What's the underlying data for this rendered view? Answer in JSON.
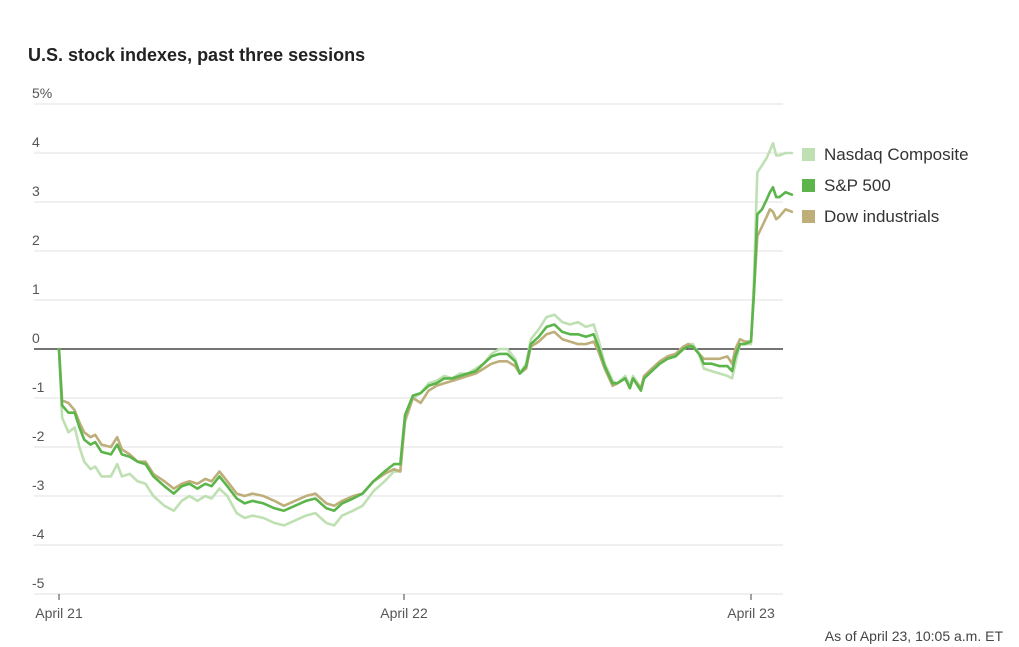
{
  "chart_data": {
    "type": "line",
    "title": "U.S. stock indexes, past three sessions",
    "xlabel": "",
    "ylabel": "",
    "x_tick_labels": [
      "April 21",
      "April 22",
      "April 23"
    ],
    "y_tick_labels": [
      "5%",
      "4",
      "3",
      "2",
      "1",
      "0",
      "-1",
      "-2",
      "-3",
      "-4",
      "-5"
    ],
    "ylim": [
      -5,
      5
    ],
    "grid": true,
    "legend_position": "right",
    "series": [
      {
        "name": "Nasdaq Composite",
        "color": "#bfe0b3",
        "values": [
          [
            0,
            0
          ],
          [
            0.02,
            -1.4
          ],
          [
            0.06,
            -1.7
          ],
          [
            0.1,
            -1.6
          ],
          [
            0.13,
            -2.0
          ],
          [
            0.16,
            -2.3
          ],
          [
            0.2,
            -2.45
          ],
          [
            0.23,
            -2.4
          ],
          [
            0.27,
            -2.6
          ],
          [
            0.33,
            -2.6
          ],
          [
            0.37,
            -2.35
          ],
          [
            0.4,
            -2.6
          ],
          [
            0.45,
            -2.55
          ],
          [
            0.5,
            -2.7
          ],
          [
            0.55,
            -2.75
          ],
          [
            0.6,
            -3.0
          ],
          [
            0.67,
            -3.2
          ],
          [
            0.73,
            -3.3
          ],
          [
            0.78,
            -3.1
          ],
          [
            0.83,
            -3.0
          ],
          [
            0.88,
            -3.1
          ],
          [
            0.93,
            -3.0
          ],
          [
            0.97,
            -3.05
          ],
          [
            1.02,
            -2.85
          ],
          [
            1.07,
            -3.0
          ],
          [
            1.13,
            -3.35
          ],
          [
            1.18,
            -3.45
          ],
          [
            1.23,
            -3.4
          ],
          [
            1.3,
            -3.45
          ],
          [
            1.37,
            -3.55
          ],
          [
            1.43,
            -3.6
          ],
          [
            1.5,
            -3.5
          ],
          [
            1.57,
            -3.4
          ],
          [
            1.63,
            -3.35
          ],
          [
            1.7,
            -3.55
          ],
          [
            1.75,
            -3.6
          ],
          [
            1.8,
            -3.4
          ],
          [
            1.87,
            -3.3
          ],
          [
            1.93,
            -3.2
          ],
          [
            2.0,
            -2.9
          ],
          [
            2.07,
            -2.7
          ],
          [
            2.13,
            -2.5
          ],
          [
            2.17,
            -2.5
          ],
          [
            2.2,
            -1.5
          ],
          [
            2.25,
            -1.0
          ],
          [
            2.3,
            -0.9
          ],
          [
            2.35,
            -0.7
          ],
          [
            2.4,
            -0.65
          ],
          [
            2.45,
            -0.55
          ],
          [
            2.5,
            -0.6
          ],
          [
            2.55,
            -0.5
          ],
          [
            2.6,
            -0.5
          ],
          [
            2.65,
            -0.4
          ],
          [
            2.7,
            -0.3
          ],
          [
            2.75,
            -0.1
          ],
          [
            2.8,
            0.0
          ],
          [
            2.85,
            0.0
          ],
          [
            2.9,
            -0.2
          ],
          [
            2.93,
            -0.5
          ],
          [
            2.97,
            -0.3
          ],
          [
            3.0,
            0.2
          ],
          [
            3.05,
            0.4
          ],
          [
            3.1,
            0.65
          ],
          [
            3.15,
            0.7
          ],
          [
            3.2,
            0.55
          ],
          [
            3.25,
            0.5
          ],
          [
            3.3,
            0.55
          ],
          [
            3.35,
            0.45
          ],
          [
            3.4,
            0.5
          ],
          [
            3.43,
            0.2
          ],
          [
            3.47,
            -0.3
          ],
          [
            3.52,
            -0.65
          ],
          [
            3.55,
            -0.7
          ],
          [
            3.6,
            -0.55
          ],
          [
            3.63,
            -0.75
          ],
          [
            3.65,
            -0.55
          ],
          [
            3.7,
            -0.8
          ],
          [
            3.72,
            -0.6
          ],
          [
            3.77,
            -0.4
          ],
          [
            3.82,
            -0.3
          ],
          [
            3.87,
            -0.15
          ],
          [
            3.92,
            -0.1
          ],
          [
            3.97,
            0.05
          ],
          [
            4.0,
            0.1
          ],
          [
            4.03,
            0.1
          ],
          [
            4.07,
            -0.1
          ],
          [
            4.1,
            -0.4
          ],
          [
            4.15,
            -0.45
          ],
          [
            4.2,
            -0.5
          ],
          [
            4.25,
            -0.55
          ],
          [
            4.28,
            -0.6
          ],
          [
            4.3,
            -0.3
          ],
          [
            4.33,
            0.1
          ],
          [
            4.36,
            0.1
          ],
          [
            4.4,
            0.1
          ],
          [
            4.42,
            1.5
          ],
          [
            4.44,
            3.6
          ],
          [
            4.47,
            3.75
          ],
          [
            4.5,
            3.9
          ],
          [
            4.52,
            4.05
          ],
          [
            4.54,
            4.2
          ],
          [
            4.56,
            3.95
          ],
          [
            4.58,
            3.95
          ],
          [
            4.62,
            4.0
          ],
          [
            4.66,
            4.0
          ]
        ]
      },
      {
        "name": "S&P 500",
        "color": "#5bb54a",
        "values": [
          [
            0,
            0
          ],
          [
            0.02,
            -1.15
          ],
          [
            0.06,
            -1.3
          ],
          [
            0.1,
            -1.3
          ],
          [
            0.13,
            -1.6
          ],
          [
            0.16,
            -1.85
          ],
          [
            0.2,
            -1.95
          ],
          [
            0.23,
            -1.9
          ],
          [
            0.27,
            -2.1
          ],
          [
            0.33,
            -2.15
          ],
          [
            0.37,
            -1.95
          ],
          [
            0.4,
            -2.15
          ],
          [
            0.45,
            -2.2
          ],
          [
            0.5,
            -2.3
          ],
          [
            0.55,
            -2.35
          ],
          [
            0.6,
            -2.6
          ],
          [
            0.67,
            -2.8
          ],
          [
            0.73,
            -2.95
          ],
          [
            0.78,
            -2.8
          ],
          [
            0.83,
            -2.75
          ],
          [
            0.88,
            -2.85
          ],
          [
            0.93,
            -2.75
          ],
          [
            0.97,
            -2.8
          ],
          [
            1.02,
            -2.6
          ],
          [
            1.07,
            -2.8
          ],
          [
            1.13,
            -3.05
          ],
          [
            1.18,
            -3.15
          ],
          [
            1.23,
            -3.1
          ],
          [
            1.3,
            -3.15
          ],
          [
            1.37,
            -3.25
          ],
          [
            1.43,
            -3.3
          ],
          [
            1.5,
            -3.2
          ],
          [
            1.57,
            -3.1
          ],
          [
            1.63,
            -3.05
          ],
          [
            1.7,
            -3.25
          ],
          [
            1.75,
            -3.3
          ],
          [
            1.8,
            -3.15
          ],
          [
            1.87,
            -3.05
          ],
          [
            1.93,
            -2.95
          ],
          [
            2.0,
            -2.7
          ],
          [
            2.07,
            -2.5
          ],
          [
            2.13,
            -2.35
          ],
          [
            2.17,
            -2.35
          ],
          [
            2.2,
            -1.35
          ],
          [
            2.25,
            -0.95
          ],
          [
            2.3,
            -0.9
          ],
          [
            2.35,
            -0.75
          ],
          [
            2.4,
            -0.7
          ],
          [
            2.45,
            -0.6
          ],
          [
            2.5,
            -0.6
          ],
          [
            2.55,
            -0.55
          ],
          [
            2.6,
            -0.5
          ],
          [
            2.65,
            -0.45
          ],
          [
            2.7,
            -0.3
          ],
          [
            2.75,
            -0.15
          ],
          [
            2.8,
            -0.1
          ],
          [
            2.85,
            -0.1
          ],
          [
            2.9,
            -0.25
          ],
          [
            2.93,
            -0.5
          ],
          [
            2.97,
            -0.35
          ],
          [
            3.0,
            0.1
          ],
          [
            3.05,
            0.25
          ],
          [
            3.1,
            0.45
          ],
          [
            3.15,
            0.5
          ],
          [
            3.2,
            0.35
          ],
          [
            3.25,
            0.3
          ],
          [
            3.3,
            0.3
          ],
          [
            3.35,
            0.25
          ],
          [
            3.4,
            0.3
          ],
          [
            3.43,
            0.05
          ],
          [
            3.47,
            -0.35
          ],
          [
            3.52,
            -0.7
          ],
          [
            3.55,
            -0.7
          ],
          [
            3.6,
            -0.6
          ],
          [
            3.63,
            -0.8
          ],
          [
            3.65,
            -0.6
          ],
          [
            3.7,
            -0.85
          ],
          [
            3.72,
            -0.6
          ],
          [
            3.77,
            -0.45
          ],
          [
            3.82,
            -0.3
          ],
          [
            3.87,
            -0.2
          ],
          [
            3.92,
            -0.15
          ],
          [
            3.97,
            0.0
          ],
          [
            4.0,
            0.05
          ],
          [
            4.03,
            0.05
          ],
          [
            4.07,
            -0.1
          ],
          [
            4.1,
            -0.3
          ],
          [
            4.15,
            -0.3
          ],
          [
            4.2,
            -0.35
          ],
          [
            4.25,
            -0.35
          ],
          [
            4.28,
            -0.45
          ],
          [
            4.3,
            -0.15
          ],
          [
            4.33,
            0.1
          ],
          [
            4.36,
            0.1
          ],
          [
            4.4,
            0.15
          ],
          [
            4.42,
            1.2
          ],
          [
            4.44,
            2.75
          ],
          [
            4.47,
            2.85
          ],
          [
            4.5,
            3.05
          ],
          [
            4.52,
            3.2
          ],
          [
            4.54,
            3.3
          ],
          [
            4.56,
            3.1
          ],
          [
            4.58,
            3.1
          ],
          [
            4.62,
            3.2
          ],
          [
            4.66,
            3.15
          ]
        ]
      },
      {
        "name": "Dow industrials",
        "color": "#bdae7a",
        "values": [
          [
            0,
            0
          ],
          [
            0.02,
            -1.05
          ],
          [
            0.06,
            -1.1
          ],
          [
            0.1,
            -1.25
          ],
          [
            0.13,
            -1.5
          ],
          [
            0.16,
            -1.7
          ],
          [
            0.2,
            -1.8
          ],
          [
            0.23,
            -1.75
          ],
          [
            0.27,
            -1.95
          ],
          [
            0.33,
            -2.0
          ],
          [
            0.37,
            -1.8
          ],
          [
            0.4,
            -2.05
          ],
          [
            0.45,
            -2.15
          ],
          [
            0.5,
            -2.3
          ],
          [
            0.55,
            -2.3
          ],
          [
            0.6,
            -2.55
          ],
          [
            0.67,
            -2.7
          ],
          [
            0.73,
            -2.85
          ],
          [
            0.78,
            -2.75
          ],
          [
            0.83,
            -2.7
          ],
          [
            0.88,
            -2.75
          ],
          [
            0.93,
            -2.65
          ],
          [
            0.97,
            -2.7
          ],
          [
            1.02,
            -2.5
          ],
          [
            1.07,
            -2.7
          ],
          [
            1.13,
            -2.95
          ],
          [
            1.18,
            -3.0
          ],
          [
            1.23,
            -2.95
          ],
          [
            1.3,
            -3.0
          ],
          [
            1.37,
            -3.1
          ],
          [
            1.43,
            -3.2
          ],
          [
            1.5,
            -3.1
          ],
          [
            1.57,
            -3.0
          ],
          [
            1.63,
            -2.95
          ],
          [
            1.7,
            -3.15
          ],
          [
            1.75,
            -3.2
          ],
          [
            1.8,
            -3.1
          ],
          [
            1.87,
            -3.0
          ],
          [
            1.93,
            -2.95
          ],
          [
            2.0,
            -2.7
          ],
          [
            2.07,
            -2.55
          ],
          [
            2.13,
            -2.45
          ],
          [
            2.17,
            -2.5
          ],
          [
            2.2,
            -1.45
          ],
          [
            2.25,
            -1.0
          ],
          [
            2.3,
            -1.1
          ],
          [
            2.35,
            -0.85
          ],
          [
            2.4,
            -0.75
          ],
          [
            2.45,
            -0.7
          ],
          [
            2.5,
            -0.65
          ],
          [
            2.55,
            -0.6
          ],
          [
            2.6,
            -0.55
          ],
          [
            2.65,
            -0.5
          ],
          [
            2.7,
            -0.4
          ],
          [
            2.75,
            -0.3
          ],
          [
            2.8,
            -0.25
          ],
          [
            2.85,
            -0.25
          ],
          [
            2.9,
            -0.35
          ],
          [
            2.93,
            -0.5
          ],
          [
            2.97,
            -0.4
          ],
          [
            3.0,
            0.05
          ],
          [
            3.05,
            0.15
          ],
          [
            3.1,
            0.3
          ],
          [
            3.15,
            0.35
          ],
          [
            3.2,
            0.2
          ],
          [
            3.25,
            0.15
          ],
          [
            3.3,
            0.1
          ],
          [
            3.35,
            0.1
          ],
          [
            3.4,
            0.15
          ],
          [
            3.43,
            -0.05
          ],
          [
            3.47,
            -0.4
          ],
          [
            3.52,
            -0.75
          ],
          [
            3.55,
            -0.7
          ],
          [
            3.6,
            -0.6
          ],
          [
            3.63,
            -0.8
          ],
          [
            3.65,
            -0.6
          ],
          [
            3.7,
            -0.8
          ],
          [
            3.72,
            -0.55
          ],
          [
            3.77,
            -0.4
          ],
          [
            3.82,
            -0.25
          ],
          [
            3.87,
            -0.15
          ],
          [
            3.92,
            -0.1
          ],
          [
            3.97,
            0.05
          ],
          [
            4.0,
            0.1
          ],
          [
            4.03,
            0.05
          ],
          [
            4.07,
            -0.1
          ],
          [
            4.1,
            -0.2
          ],
          [
            4.15,
            -0.2
          ],
          [
            4.2,
            -0.2
          ],
          [
            4.25,
            -0.15
          ],
          [
            4.28,
            -0.3
          ],
          [
            4.3,
            0.0
          ],
          [
            4.33,
            0.2
          ],
          [
            4.36,
            0.15
          ],
          [
            4.4,
            0.15
          ],
          [
            4.42,
            1.2
          ],
          [
            4.44,
            2.3
          ],
          [
            4.47,
            2.5
          ],
          [
            4.5,
            2.7
          ],
          [
            4.52,
            2.85
          ],
          [
            4.54,
            2.8
          ],
          [
            4.56,
            2.65
          ],
          [
            4.58,
            2.7
          ],
          [
            4.62,
            2.85
          ],
          [
            4.66,
            2.8
          ]
        ]
      }
    ]
  },
  "footnote": "As of April 23, 10:05 a.m. ET"
}
